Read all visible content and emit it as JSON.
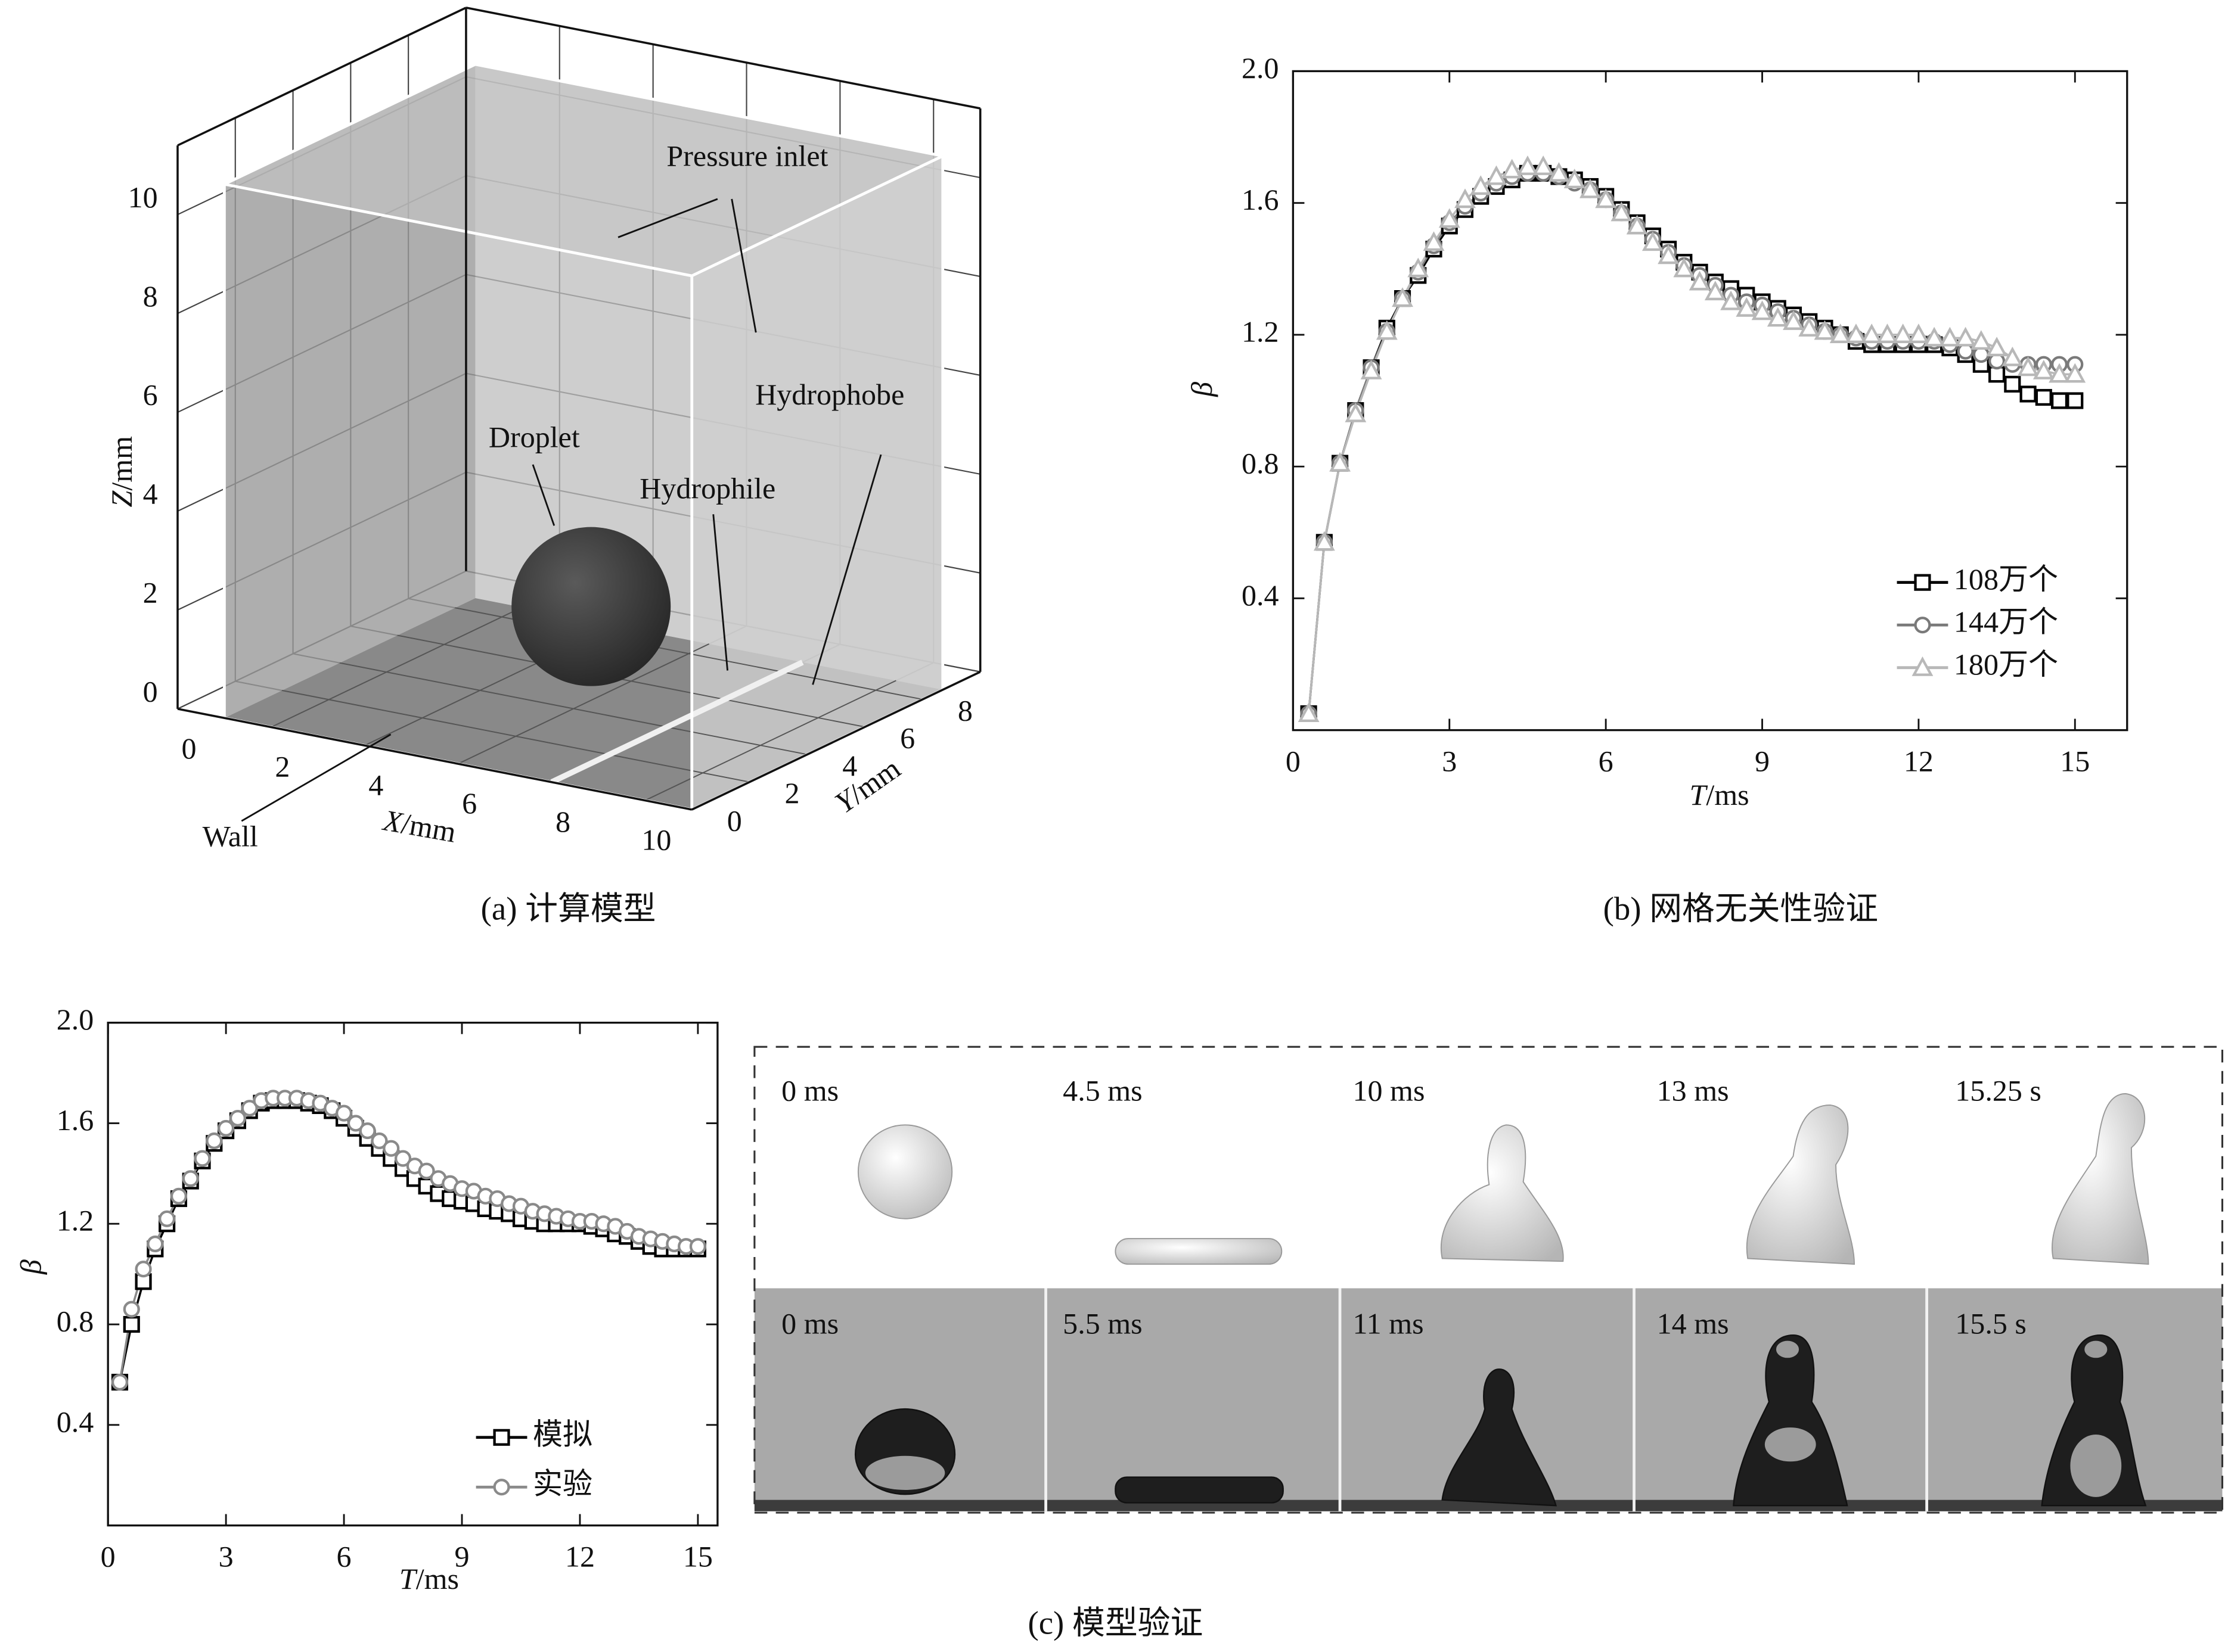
{
  "panel_a": {
    "caption": "(a) 计算模型",
    "labels": {
      "pressure_inlet": "Pressure inlet",
      "hydrophobe": "Hydrophobe",
      "droplet": "Droplet",
      "hydrophile": "Hydrophile",
      "wall": "Wall"
    },
    "z_axis": {
      "title": "Z/mm",
      "ticks": [
        0,
        2,
        4,
        6,
        8,
        10
      ]
    },
    "x_axis": {
      "title": "X/mm",
      "ticks": [
        0,
        2,
        4,
        6,
        8,
        10
      ]
    },
    "y_axis": {
      "title": "Y/mm",
      "ticks": [
        0,
        2,
        4,
        6,
        8
      ]
    }
  },
  "chart_data": [
    {
      "type": "line",
      "caption": "(b) 网格无关性验证",
      "x_label": "T/ms",
      "y_label": "β",
      "xlim": [
        0,
        16
      ],
      "ylim": [
        0,
        2
      ],
      "xticks": [
        0,
        3,
        6,
        9,
        12,
        15
      ],
      "yticks": [
        0.4,
        0.8,
        1.2,
        1.6,
        {
          "value": 2,
          "label": "2.0"
        }
      ],
      "legend": "lower right",
      "x": [
        0.3,
        0.6,
        0.9,
        1.2,
        1.5,
        1.8,
        2.1,
        2.4,
        2.7,
        3.0,
        3.3,
        3.6,
        3.9,
        4.2,
        4.5,
        4.8,
        5.1,
        5.4,
        5.7,
        6.0,
        6.3,
        6.6,
        6.9,
        7.2,
        7.5,
        7.8,
        8.1,
        8.4,
        8.7,
        9.0,
        9.3,
        9.6,
        9.9,
        10.2,
        10.5,
        10.8,
        11.1,
        11.4,
        11.7,
        12.0,
        12.3,
        12.6,
        12.9,
        13.2,
        13.5,
        13.8,
        14.1,
        14.4,
        14.7,
        15.0
      ],
      "series": [
        {
          "name": "108万个",
          "color": "#000000",
          "marker": "square",
          "values": [
            0.05,
            0.57,
            0.81,
            0.97,
            1.1,
            1.22,
            1.31,
            1.38,
            1.46,
            1.53,
            1.58,
            1.62,
            1.65,
            1.67,
            1.69,
            1.69,
            1.68,
            1.67,
            1.65,
            1.62,
            1.58,
            1.54,
            1.5,
            1.46,
            1.42,
            1.39,
            1.36,
            1.34,
            1.32,
            1.3,
            1.28,
            1.26,
            1.24,
            1.22,
            1.2,
            1.18,
            1.17,
            1.17,
            1.17,
            1.17,
            1.17,
            1.16,
            1.14,
            1.11,
            1.08,
            1.05,
            1.02,
            1.01,
            1.0,
            1.0
          ]
        },
        {
          "name": "144万个",
          "color": "#7a7a7a",
          "marker": "circle",
          "values": [
            0.05,
            0.57,
            0.81,
            0.97,
            1.1,
            1.21,
            1.31,
            1.39,
            1.47,
            1.54,
            1.59,
            1.63,
            1.66,
            1.68,
            1.69,
            1.69,
            1.68,
            1.66,
            1.64,
            1.61,
            1.57,
            1.53,
            1.49,
            1.45,
            1.41,
            1.38,
            1.35,
            1.32,
            1.3,
            1.29,
            1.27,
            1.25,
            1.23,
            1.21,
            1.2,
            1.19,
            1.18,
            1.18,
            1.18,
            1.18,
            1.18,
            1.17,
            1.15,
            1.14,
            1.12,
            1.11,
            1.11,
            1.11,
            1.11,
            1.11
          ]
        },
        {
          "name": "180万个",
          "color": "#b8b8b8",
          "marker": "triangle",
          "values": [
            0.05,
            0.57,
            0.81,
            0.96,
            1.09,
            1.21,
            1.31,
            1.4,
            1.48,
            1.55,
            1.61,
            1.65,
            1.68,
            1.7,
            1.71,
            1.71,
            1.69,
            1.67,
            1.64,
            1.61,
            1.57,
            1.53,
            1.48,
            1.44,
            1.4,
            1.36,
            1.33,
            1.3,
            1.28,
            1.27,
            1.25,
            1.24,
            1.22,
            1.21,
            1.2,
            1.2,
            1.2,
            1.2,
            1.2,
            1.2,
            1.19,
            1.19,
            1.19,
            1.18,
            1.16,
            1.13,
            1.1,
            1.09,
            1.08,
            1.08
          ]
        }
      ]
    },
    {
      "type": "line",
      "caption": "(c) 模型验证",
      "x_label": "T/ms",
      "y_label": "β",
      "xlim": [
        0,
        15.5
      ],
      "ylim": [
        0,
        2
      ],
      "xticks": [
        0,
        3,
        6,
        9,
        12,
        15
      ],
      "yticks": [
        0.4,
        0.8,
        1.2,
        1.6,
        {
          "value": 2,
          "label": "2.0"
        }
      ],
      "legend": "lower right",
      "x": [
        0.3,
        0.6,
        0.9,
        1.2,
        1.5,
        1.8,
        2.1,
        2.4,
        2.7,
        3.0,
        3.3,
        3.6,
        3.9,
        4.2,
        4.5,
        4.8,
        5.1,
        5.4,
        5.7,
        6.0,
        6.3,
        6.6,
        6.9,
        7.2,
        7.5,
        7.8,
        8.1,
        8.4,
        8.7,
        9.0,
        9.3,
        9.6,
        9.9,
        10.2,
        10.5,
        10.8,
        11.1,
        11.4,
        11.7,
        12.0,
        12.3,
        12.6,
        12.9,
        13.2,
        13.5,
        13.8,
        14.1,
        14.4,
        14.7,
        15.0
      ],
      "series": [
        {
          "name": "模拟",
          "color": "#000000",
          "marker": "square",
          "values": [
            0.57,
            0.8,
            0.97,
            1.1,
            1.2,
            1.3,
            1.37,
            1.45,
            1.52,
            1.57,
            1.61,
            1.65,
            1.68,
            1.69,
            1.69,
            1.69,
            1.68,
            1.67,
            1.65,
            1.62,
            1.58,
            1.54,
            1.5,
            1.46,
            1.42,
            1.38,
            1.35,
            1.32,
            1.3,
            1.29,
            1.28,
            1.26,
            1.25,
            1.24,
            1.22,
            1.21,
            1.2,
            1.2,
            1.2,
            1.2,
            1.19,
            1.18,
            1.16,
            1.15,
            1.13,
            1.11,
            1.1,
            1.1,
            1.1,
            1.1
          ]
        },
        {
          "name": "实验",
          "color": "#8a8a8a",
          "marker": "circle",
          "values": [
            0.57,
            0.86,
            1.02,
            1.12,
            1.22,
            1.31,
            1.38,
            1.46,
            1.53,
            1.58,
            1.62,
            1.66,
            1.69,
            1.7,
            1.7,
            1.7,
            1.69,
            1.68,
            1.66,
            1.64,
            1.6,
            1.57,
            1.53,
            1.5,
            1.46,
            1.43,
            1.41,
            1.38,
            1.36,
            1.34,
            1.33,
            1.31,
            1.3,
            1.28,
            1.27,
            1.25,
            1.24,
            1.23,
            1.22,
            1.21,
            1.21,
            1.2,
            1.19,
            1.17,
            1.15,
            1.14,
            1.13,
            1.12,
            1.11,
            1.11
          ]
        }
      ]
    }
  ],
  "snapshots": {
    "simulation": [
      "0 ms",
      "4.5 ms",
      "10 ms",
      "13 ms",
      "15.25 s"
    ],
    "experiment": [
      "0 ms",
      "5.5 ms",
      "11 ms",
      "14 ms",
      "15.5 s"
    ]
  }
}
